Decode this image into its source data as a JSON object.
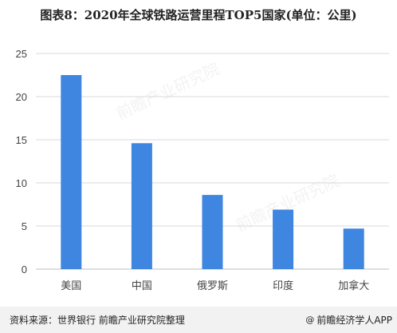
{
  "title": "图表8：2020年全球铁路运营里程TOP5国家(单位：公里)",
  "watermark_text": "前瞻产业研究院",
  "source": "资料来源：世界银行 前瞻产业研究院整理",
  "brand": {
    "icon": "at-icon",
    "label": "前瞻经济学人APP",
    "glyph": "@"
  },
  "colors": {
    "bar": "#3f86e0",
    "grid": "#d9d9d9",
    "axis": "#bfbfbf",
    "tick": "#444444"
  },
  "chart_data": {
    "type": "bar",
    "categories": [
      "美国",
      "中国",
      "俄罗斯",
      "印度",
      "加拿大"
    ],
    "values": [
      22.5,
      14.6,
      8.6,
      6.9,
      4.7
    ],
    "yticks": [
      0,
      5,
      10,
      15,
      20,
      25
    ],
    "ylim": [
      0,
      25
    ],
    "grid": true
  }
}
